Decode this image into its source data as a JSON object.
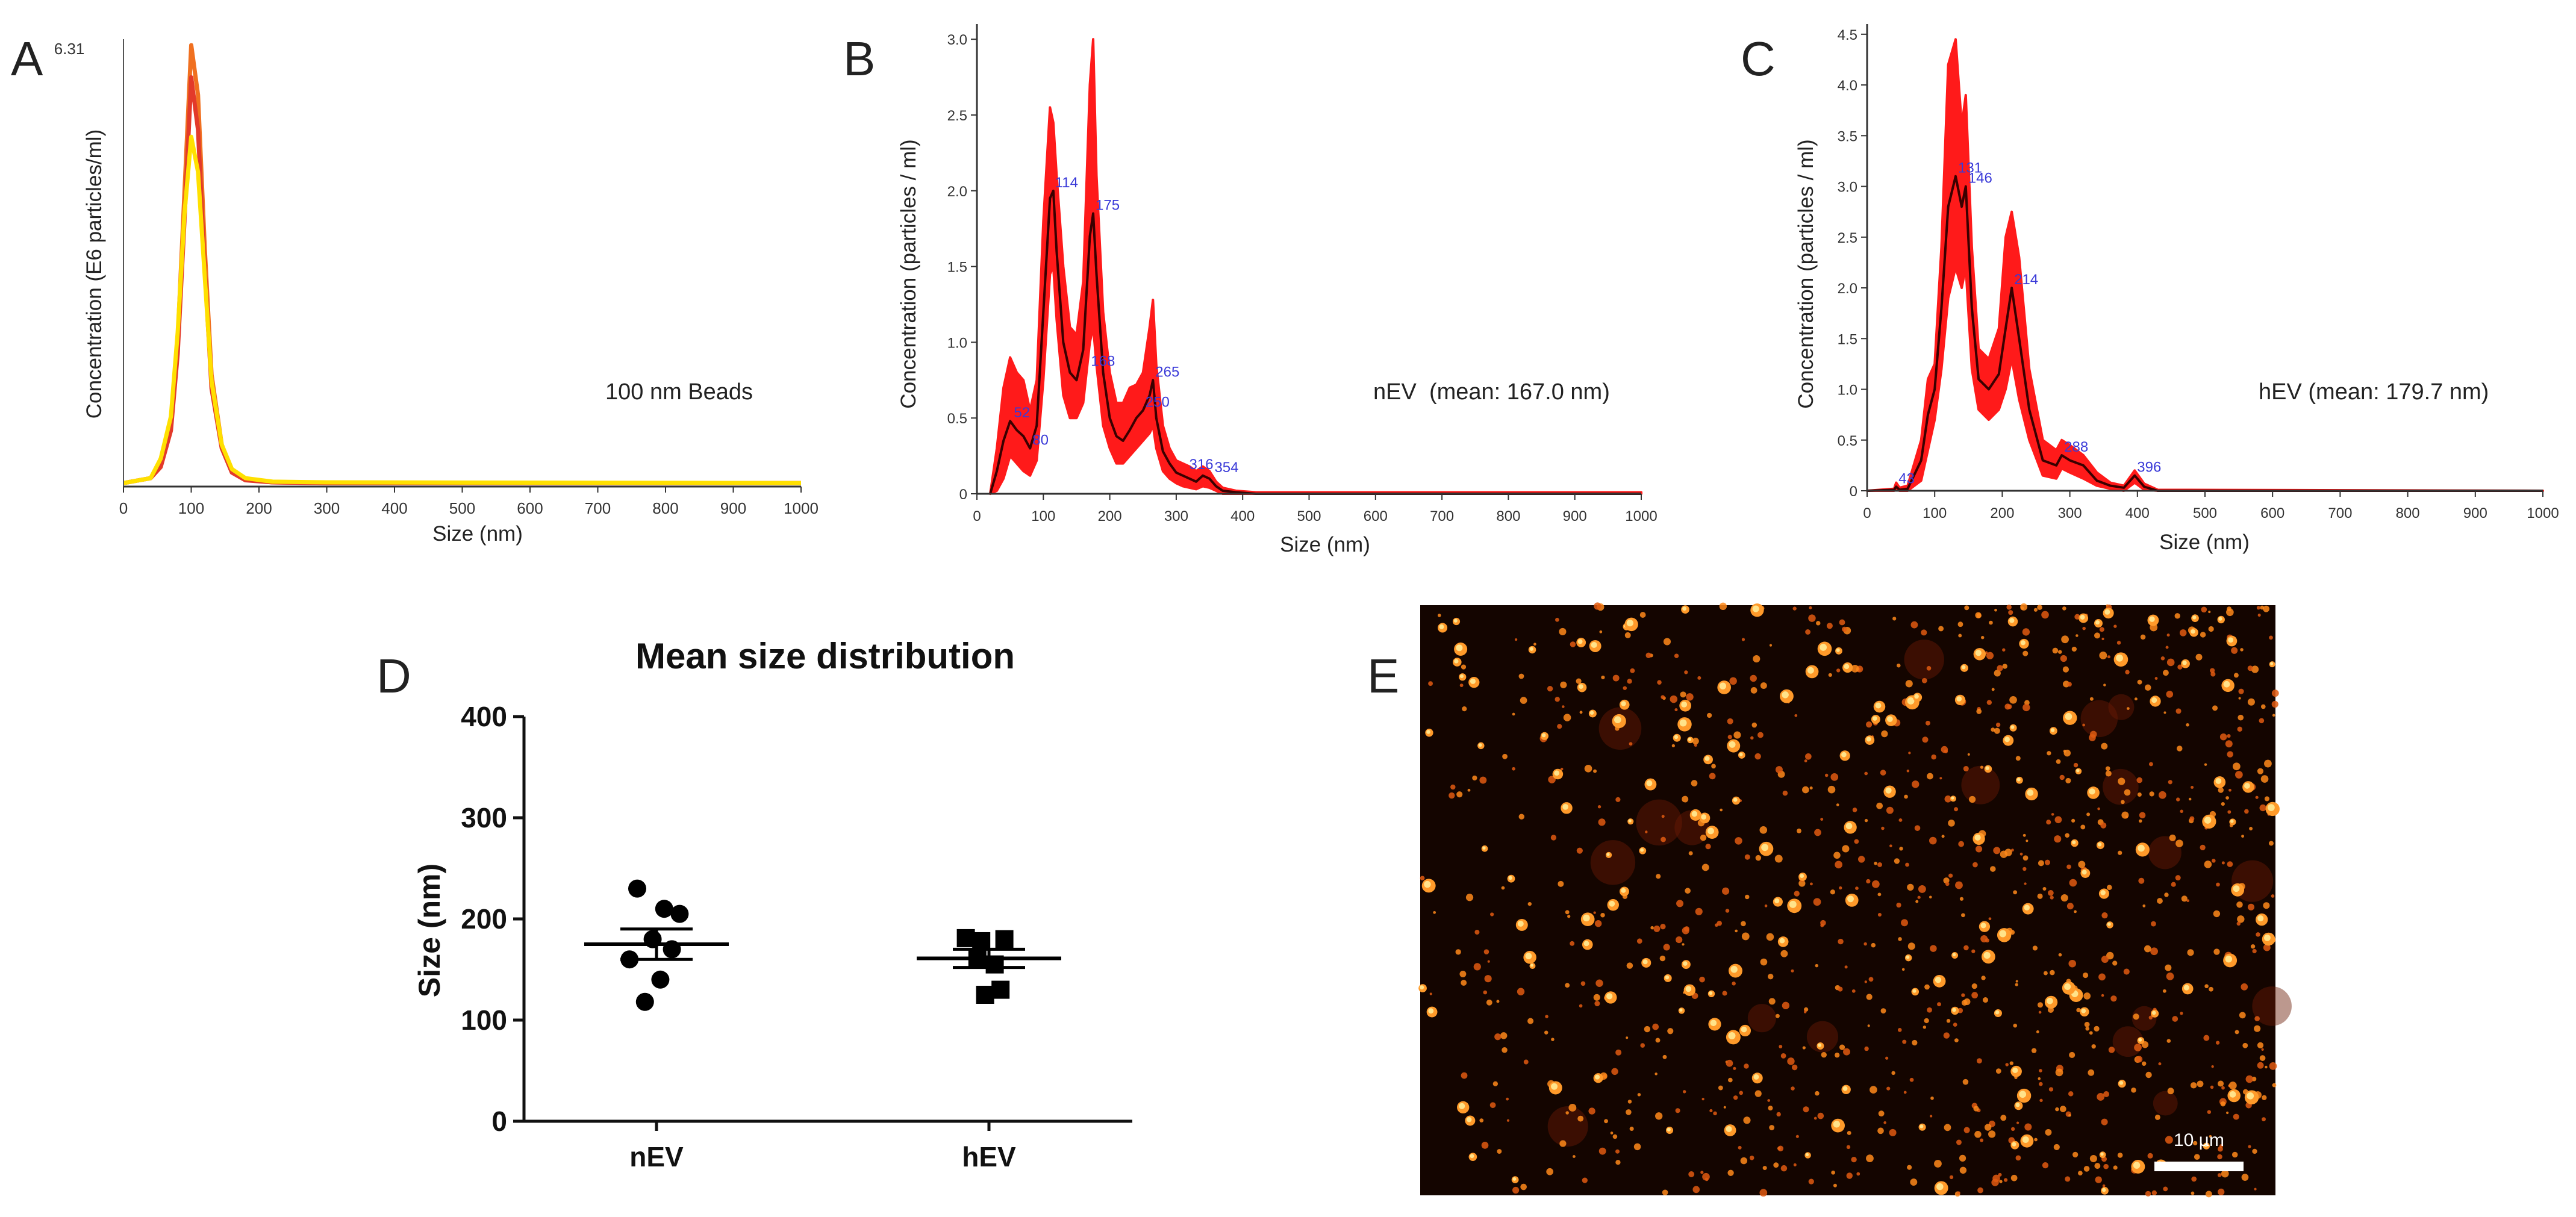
{
  "panel_labels": {
    "A": "A",
    "B": "B",
    "C": "C",
    "D": "D",
    "E": "E"
  },
  "colors": {
    "red": "#ff1a1a",
    "dark_trace": "#3a0000",
    "orange": "#f07020",
    "yellow": "#ffe000",
    "marker_label": "#3a3ad8",
    "axis": "#333333",
    "micrograph_bg": "#140500"
  },
  "chart_data": [
    {
      "id": "A",
      "type": "line",
      "title": "",
      "xlabel": "Size (nm)",
      "ylabel": "Concentration (E6 particles/ml)",
      "xlim": [
        0,
        1000
      ],
      "ylim": [
        0,
        6.31
      ],
      "x_ticks": [
        0,
        100,
        200,
        300,
        400,
        500,
        600,
        700,
        800,
        900,
        1000
      ],
      "y_top_label": "6.31",
      "annotation": "100 nm Beads",
      "series": [
        {
          "name": "orange",
          "color": "#f07020",
          "x": [
            0,
            40,
            55,
            70,
            80,
            90,
            100,
            110,
            120,
            130,
            145,
            160,
            180,
            220,
            300,
            1000
          ],
          "y": [
            0.05,
            0.12,
            0.3,
            0.9,
            2.1,
            4.2,
            6.31,
            5.6,
            3.4,
            1.6,
            0.6,
            0.22,
            0.1,
            0.06,
            0.05,
            0.05
          ]
        },
        {
          "name": "red",
          "color": "#e33a2a",
          "x": [
            0,
            40,
            55,
            70,
            80,
            90,
            100,
            110,
            120,
            130,
            145,
            160,
            180,
            220,
            300,
            1000
          ],
          "y": [
            0.05,
            0.12,
            0.28,
            0.8,
            1.9,
            3.8,
            5.85,
            5.1,
            3.1,
            1.4,
            0.55,
            0.2,
            0.09,
            0.06,
            0.05,
            0.05
          ]
        },
        {
          "name": "yellow",
          "color": "#ffe000",
          "x": [
            0,
            40,
            55,
            70,
            80,
            90,
            100,
            110,
            120,
            130,
            145,
            160,
            180,
            220,
            300,
            1000
          ],
          "y": [
            0.05,
            0.12,
            0.4,
            1.0,
            2.2,
            3.9,
            5.0,
            4.5,
            3.0,
            1.5,
            0.6,
            0.25,
            0.12,
            0.07,
            0.06,
            0.05
          ]
        }
      ]
    },
    {
      "id": "B",
      "type": "area",
      "title": "",
      "xlabel": "Size (nm)",
      "ylabel": "Concentration (particles / ml)",
      "xlim": [
        0,
        1000
      ],
      "ylim": [
        0,
        3.1
      ],
      "x_ticks": [
        0,
        100,
        200,
        300,
        400,
        500,
        600,
        700,
        800,
        900,
        1000
      ],
      "y_ticks": [
        0,
        0.5,
        1.0,
        1.5,
        2.0,
        2.5,
        3.0
      ],
      "y_tick_labels": [
        "0",
        "0.5",
        "1.0",
        "1.5",
        "2.0",
        "2.5",
        "3.0"
      ],
      "annotation": "nEV  (mean: 167.0 nm)",
      "mean_x": [
        20,
        30,
        40,
        50,
        60,
        70,
        80,
        90,
        100,
        110,
        115,
        120,
        130,
        140,
        150,
        160,
        170,
        175,
        180,
        190,
        200,
        210,
        220,
        230,
        240,
        250,
        260,
        265,
        270,
        280,
        290,
        300,
        310,
        320,
        330,
        340,
        350,
        360,
        370,
        390,
        420,
        1000
      ],
      "mean_y": [
        0,
        0.15,
        0.35,
        0.48,
        0.42,
        0.38,
        0.3,
        0.45,
        1.2,
        1.95,
        2.0,
        1.6,
        1.0,
        0.8,
        0.75,
        0.95,
        1.7,
        1.85,
        1.45,
        0.8,
        0.5,
        0.38,
        0.35,
        0.42,
        0.5,
        0.55,
        0.65,
        0.75,
        0.5,
        0.28,
        0.2,
        0.14,
        0.12,
        0.1,
        0.08,
        0.12,
        0.1,
        0.05,
        0.02,
        0.01,
        0.0,
        0.0
      ],
      "upper_y": [
        0,
        0.3,
        0.7,
        0.9,
        0.8,
        0.75,
        0.55,
        0.75,
        1.8,
        2.55,
        2.45,
        2.1,
        1.5,
        1.1,
        1.05,
        1.4,
        2.7,
        3.0,
        2.1,
        1.2,
        0.8,
        0.6,
        0.6,
        0.7,
        0.72,
        0.8,
        1.1,
        1.28,
        0.85,
        0.45,
        0.3,
        0.22,
        0.2,
        0.18,
        0.15,
        0.18,
        0.15,
        0.08,
        0.04,
        0.02,
        0.01,
        0.01
      ],
      "lower_y": [
        0,
        0.02,
        0.1,
        0.25,
        0.2,
        0.15,
        0.12,
        0.22,
        0.75,
        1.45,
        1.5,
        1.15,
        0.65,
        0.5,
        0.5,
        0.6,
        1.0,
        1.1,
        0.85,
        0.45,
        0.3,
        0.2,
        0.2,
        0.25,
        0.3,
        0.35,
        0.4,
        0.45,
        0.3,
        0.15,
        0.1,
        0.07,
        0.05,
        0.04,
        0.03,
        0.05,
        0.04,
        0.02,
        0.0,
        0.0,
        0.0,
        0.0
      ],
      "peak_labels": [
        {
          "x": 52,
          "y": 0.48,
          "text": "52"
        },
        {
          "x": 80,
          "y": 0.3,
          "text": "80"
        },
        {
          "x": 114,
          "y": 2.0,
          "text": "114"
        },
        {
          "x": 175,
          "y": 1.85,
          "text": "175"
        },
        {
          "x": 168,
          "y": 0.82,
          "text": "168"
        },
        {
          "x": 265,
          "y": 0.75,
          "text": "265"
        },
        {
          "x": 250,
          "y": 0.55,
          "text": "250"
        },
        {
          "x": 316,
          "y": 0.14,
          "text": "316"
        },
        {
          "x": 354,
          "y": 0.12,
          "text": "354"
        }
      ]
    },
    {
      "id": "C",
      "type": "area",
      "title": "",
      "xlabel": "Size (nm)",
      "ylabel": "Concentration (particles / ml)",
      "xlim": [
        0,
        1000
      ],
      "ylim": [
        0,
        4.6
      ],
      "x_ticks": [
        0,
        100,
        200,
        300,
        400,
        500,
        600,
        700,
        800,
        900,
        1000
      ],
      "y_ticks": [
        0,
        0.5,
        1.0,
        1.5,
        2.0,
        2.5,
        3.0,
        3.5,
        4.0,
        4.5
      ],
      "y_tick_labels": [
        "0",
        "0.5",
        "1.0",
        "1.5",
        "2.0",
        "2.5",
        "3.0",
        "3.5",
        "4.0",
        "4.5"
      ],
      "annotation": "hEV (mean: 179.7 nm)",
      "mean_x": [
        0,
        40,
        43,
        48,
        60,
        80,
        90,
        100,
        110,
        120,
        131,
        140,
        146,
        155,
        165,
        180,
        195,
        205,
        214,
        225,
        240,
        260,
        280,
        288,
        300,
        320,
        340,
        360,
        380,
        396,
        410,
        430,
        1000
      ],
      "mean_y": [
        0,
        0.01,
        0.04,
        0.01,
        0.02,
        0.3,
        0.75,
        1.0,
        1.8,
        2.8,
        3.1,
        2.8,
        3.0,
        1.8,
        1.1,
        1.0,
        1.15,
        1.6,
        2.0,
        1.5,
        0.8,
        0.3,
        0.25,
        0.35,
        0.3,
        0.25,
        0.1,
        0.05,
        0.03,
        0.15,
        0.04,
        0.0,
        0.0
      ],
      "upper_y": [
        0,
        0.02,
        0.08,
        0.03,
        0.05,
        0.5,
        1.1,
        1.25,
        2.4,
        4.2,
        4.45,
        3.6,
        3.9,
        2.4,
        1.4,
        1.3,
        1.6,
        2.5,
        2.75,
        2.3,
        1.2,
        0.5,
        0.4,
        0.5,
        0.45,
        0.35,
        0.18,
        0.08,
        0.05,
        0.2,
        0.07,
        0.01,
        0.0
      ],
      "lower_y": [
        0,
        0.0,
        0.01,
        0.0,
        0.0,
        0.1,
        0.4,
        0.7,
        1.2,
        1.9,
        2.2,
        2.0,
        2.2,
        1.2,
        0.8,
        0.7,
        0.8,
        1.0,
        1.3,
        0.9,
        0.5,
        0.15,
        0.12,
        0.22,
        0.18,
        0.12,
        0.05,
        0.02,
        0.0,
        0.08,
        0.01,
        0.0,
        0.0
      ],
      "peak_labels": [
        {
          "x": 43,
          "y": 0.04,
          "text": "43"
        },
        {
          "x": 131,
          "y": 3.1,
          "text": "131"
        },
        {
          "x": 146,
          "y": 3.0,
          "text": "146"
        },
        {
          "x": 214,
          "y": 2.0,
          "text": "214"
        },
        {
          "x": 288,
          "y": 0.35,
          "text": "288"
        },
        {
          "x": 396,
          "y": 0.15,
          "text": "396"
        }
      ]
    },
    {
      "id": "D",
      "type": "scatter",
      "title": "Mean size distribution",
      "xlabel": "",
      "ylabel": "Size (nm)",
      "ylim": [
        0,
        400
      ],
      "y_ticks": [
        0,
        100,
        200,
        300,
        400
      ],
      "categories": [
        "nEV",
        "hEV"
      ],
      "series": [
        {
          "name": "nEV",
          "marker": "circle",
          "mean": 175,
          "sem_upper": 190,
          "sem_lower": 160,
          "values": [
            230,
            210,
            205,
            180,
            170,
            160,
            140,
            118
          ],
          "offsets": [
            -1.0,
            0.4,
            1.2,
            -0.2,
            0.8,
            -1.4,
            0.2,
            -0.6
          ]
        },
        {
          "name": "hEV",
          "marker": "square",
          "mean": 161,
          "sem_upper": 170,
          "sem_lower": 152,
          "values": [
            181,
            178,
            180,
            160,
            155,
            125,
            130
          ],
          "offsets": [
            -1.2,
            -0.4,
            0.8,
            -0.6,
            0.3,
            -0.2,
            0.6
          ]
        }
      ]
    }
  ],
  "micrograph": {
    "scale_bar_label": "10 µm",
    "description": "fluorescence micrograph"
  }
}
